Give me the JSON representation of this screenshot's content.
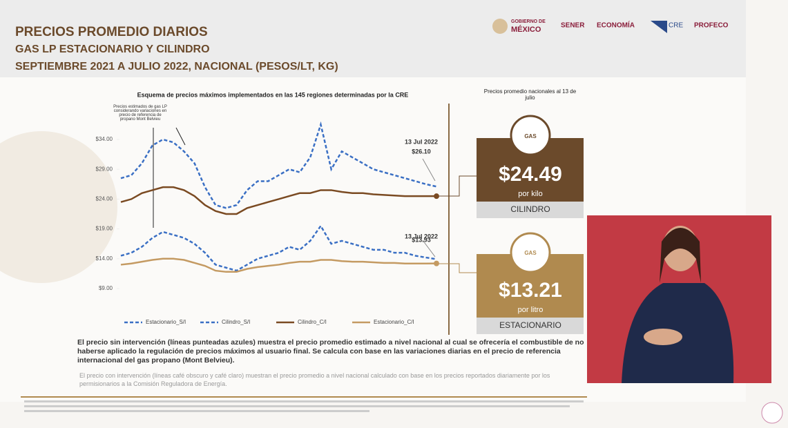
{
  "header": {
    "title": "PRECIOS PROMEDIO DIARIOS",
    "subtitle": "GAS LP ESTACIONARIO Y CILINDRO",
    "period": "SEPTIEMBRE 2021 A JULIO 2022, NACIONAL (PESOS/LT, KG)",
    "logos": [
      "GOBIERNO DE",
      "MÉXICO",
      "SENER",
      "ECONOMÍA",
      "CRE",
      "PROFECO"
    ]
  },
  "chart_data": {
    "type": "line",
    "title": "Esquema de precios máximos implementados en las 145 regiones determinadas por la CRE",
    "annotation": "Precios estimados de gas LP considerando variaciones en precio de referencia de propano Mont Belvieu",
    "end_labels": [
      {
        "date": "13 Jul 2022",
        "price": "$26.10"
      },
      {
        "date": "13 Jul 2022",
        "price": "$13.93"
      }
    ],
    "categories": [
      null,
      null,
      null,
      null,
      null,
      null,
      null,
      null,
      null,
      null,
      null,
      null,
      null,
      null,
      null,
      null,
      null,
      null,
      null,
      null,
      null,
      null,
      null,
      null,
      null,
      null,
      null,
      null,
      null,
      null,
      null
    ],
    "ylim": [
      9,
      38
    ],
    "yticks": [
      {
        "value": 9,
        "label": "$9.00"
      },
      {
        "value": 14,
        "label": "$14.00"
      },
      {
        "value": 19,
        "label": "$19.00"
      },
      {
        "value": 24,
        "label": "$24.00"
      },
      {
        "value": 29,
        "label": "$29.00"
      },
      {
        "value": 34,
        "label": "$34.00"
      }
    ],
    "series": [
      {
        "name": "Estacionario_S/I",
        "color": "#3a6fc4",
        "dashed": true,
        "values": [
          14.5,
          15,
          16,
          17.5,
          18.5,
          18,
          17.5,
          16.5,
          15,
          13,
          12.5,
          12,
          13,
          14,
          14.5,
          15,
          16,
          15.5,
          17,
          19.5,
          16.5,
          17,
          16.5,
          16,
          15.5,
          15.5,
          15,
          15,
          14.5,
          14.2,
          13.93
        ]
      },
      {
        "name": "Cilindro_S/I",
        "color": "#3a6fc4",
        "dashed": true,
        "values": [
          27.5,
          28,
          30,
          33,
          34,
          33.5,
          32,
          30,
          26,
          23,
          22.5,
          23,
          25.5,
          27,
          27,
          28,
          29,
          28.5,
          31,
          36.5,
          29,
          32,
          31,
          30,
          29,
          28.5,
          28,
          27.5,
          27,
          26.5,
          26.1
        ]
      },
      {
        "name": "Cilindro_C/I",
        "color": "#7a4a22",
        "dashed": false,
        "values": [
          23.5,
          24,
          25,
          25.5,
          26,
          26,
          25.5,
          24.5,
          23,
          22,
          21.5,
          21.5,
          22.5,
          23,
          23.5,
          24,
          24.5,
          25,
          25,
          25.5,
          25.5,
          25.2,
          25,
          25,
          24.8,
          24.7,
          24.6,
          24.5,
          24.5,
          24.5,
          24.49
        ]
      },
      {
        "name": "Estacionario_C/I",
        "color": "#c49a62",
        "dashed": false,
        "values": [
          13,
          13.2,
          13.5,
          13.8,
          14,
          14,
          13.8,
          13.3,
          12.8,
          12,
          11.8,
          11.8,
          12.3,
          12.6,
          12.8,
          13,
          13.3,
          13.5,
          13.5,
          13.8,
          13.8,
          13.6,
          13.5,
          13.5,
          13.4,
          13.3,
          13.3,
          13.2,
          13.2,
          13.2,
          13.21
        ]
      }
    ]
  },
  "panels": {
    "heading": "Precios promedio nacionales al 13 de julio",
    "cilindro": {
      "icon": "GAS",
      "price": "$24.49",
      "unit": "por kilo",
      "label": "CILINDRO"
    },
    "estacionario": {
      "icon": "GAS",
      "price": "$13.21",
      "unit": "por litro",
      "label": "ESTACIONARIO"
    }
  },
  "notes": [
    "El precio sin intervención (líneas punteadas azules) muestra el precio promedio estimado a nivel nacional al cual se ofrecería el combustible de no haberse aplicado la regulación de precios máximos al usuario final. Se calcula con base en las variaciones diarias en el precio de referencia internacional del gas propano (Mont Belvieu).",
    "El precio con intervención (líneas café obscuro y café claro) muestran el precio promedio a nivel nacional calculado con base en los precios reportados diariamente por los permisionarios a la Comisión Reguladora de Energía."
  ]
}
